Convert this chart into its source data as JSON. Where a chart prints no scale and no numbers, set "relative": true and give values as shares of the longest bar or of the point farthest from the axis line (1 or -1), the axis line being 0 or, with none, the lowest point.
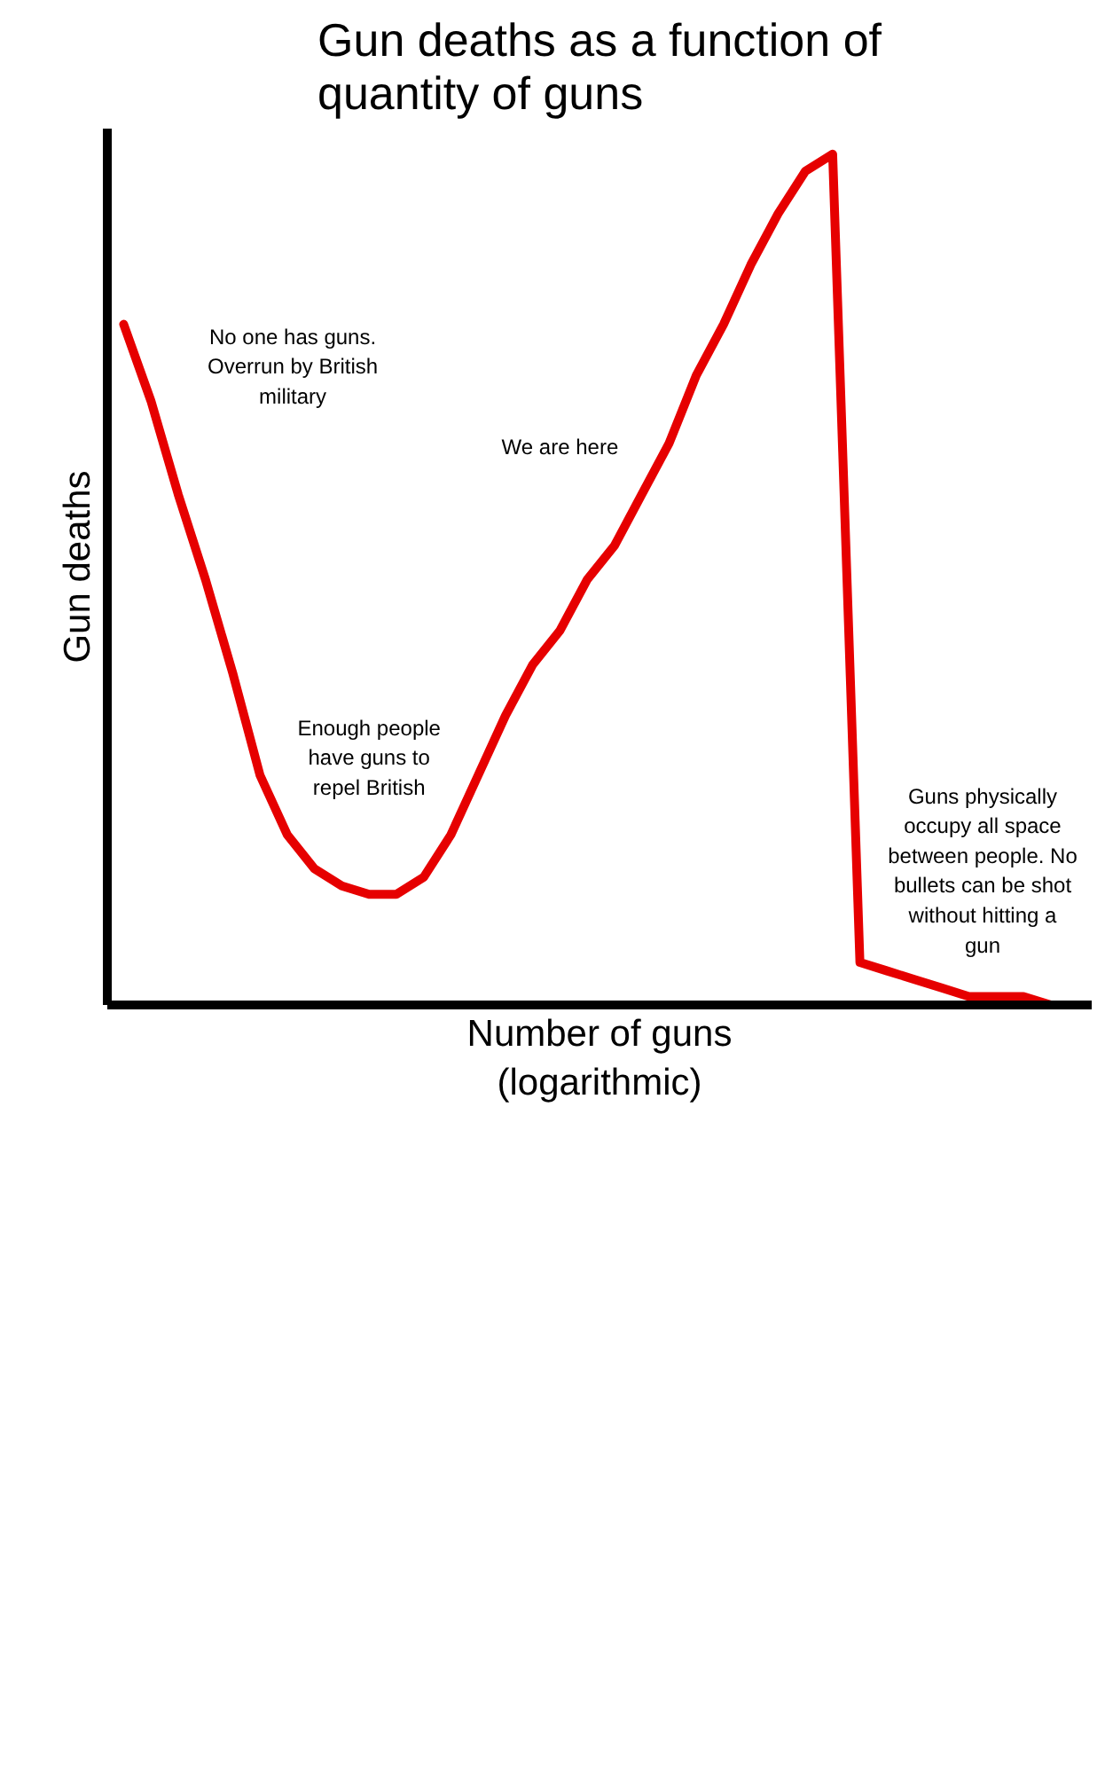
{
  "chart_data": {
    "type": "line",
    "title": "Gun deaths as a function of quantity of guns",
    "xlabel": "Number of guns (logarithmic)",
    "ylabel": "Gun deaths",
    "relative": true,
    "tick_labels": false,
    "categories": [
      null,
      null,
      null,
      null,
      null,
      null,
      null,
      null,
      null,
      null,
      null,
      null,
      null,
      null,
      null,
      null,
      null,
      null,
      null,
      null,
      null,
      null,
      null,
      null,
      null,
      null,
      null,
      null,
      null,
      null,
      null,
      null,
      null,
      null,
      null,
      null
    ],
    "series": [
      {
        "color": "#e60000",
        "values": [
          0.8,
          0.71,
          0.6,
          0.5,
          0.39,
          0.27,
          0.2,
          0.16,
          0.14,
          0.13,
          0.13,
          0.15,
          0.2,
          0.27,
          0.34,
          0.4,
          0.44,
          0.5,
          0.54,
          0.6,
          0.66,
          0.74,
          0.8,
          0.87,
          0.93,
          0.98,
          1.0,
          0.05,
          0.04,
          0.03,
          0.02,
          0.01,
          0.01,
          0.01,
          0,
          0
        ]
      }
    ],
    "annotations": [
      "No one has guns. Overrun by British military",
      "We are here",
      "Enough people have guns to repel British",
      "Guns physically occupy all space between people. No bullets can be shot without hitting a gun"
    ]
  }
}
